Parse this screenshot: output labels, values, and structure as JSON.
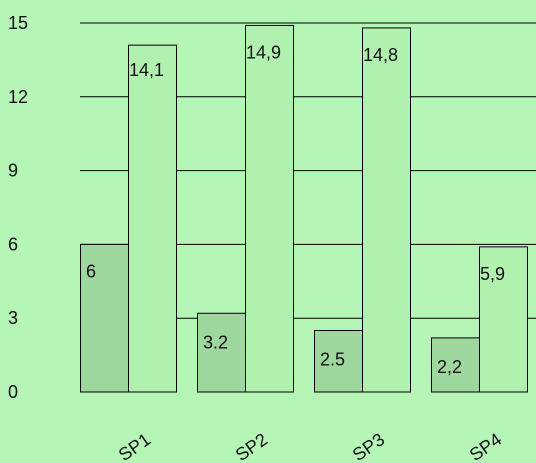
{
  "chart_data": {
    "type": "bar",
    "categories": [
      "SP1",
      "SP2",
      "SP3",
      "SP4"
    ],
    "series": [
      {
        "values": [
          6,
          3.2,
          2.5,
          2.2
        ],
        "labels": [
          "6",
          "3.2",
          "2.5",
          "2,2"
        ],
        "color": "#9ed89e"
      },
      {
        "values": [
          14.1,
          14.9,
          14.8,
          5.9
        ],
        "labels": [
          "14,1",
          "14,9",
          "14,8",
          "5,9"
        ],
        "color": "#b0f1b0"
      }
    ],
    "yticks": [
      "0",
      "3",
      "6",
      "9",
      "12",
      "15"
    ],
    "ylim": [
      0,
      15
    ],
    "grid": true,
    "legend": "none",
    "colors": {
      "background": "#b5f5b5",
      "gridline": "#000000",
      "bar_stroke": "#000000"
    }
  }
}
